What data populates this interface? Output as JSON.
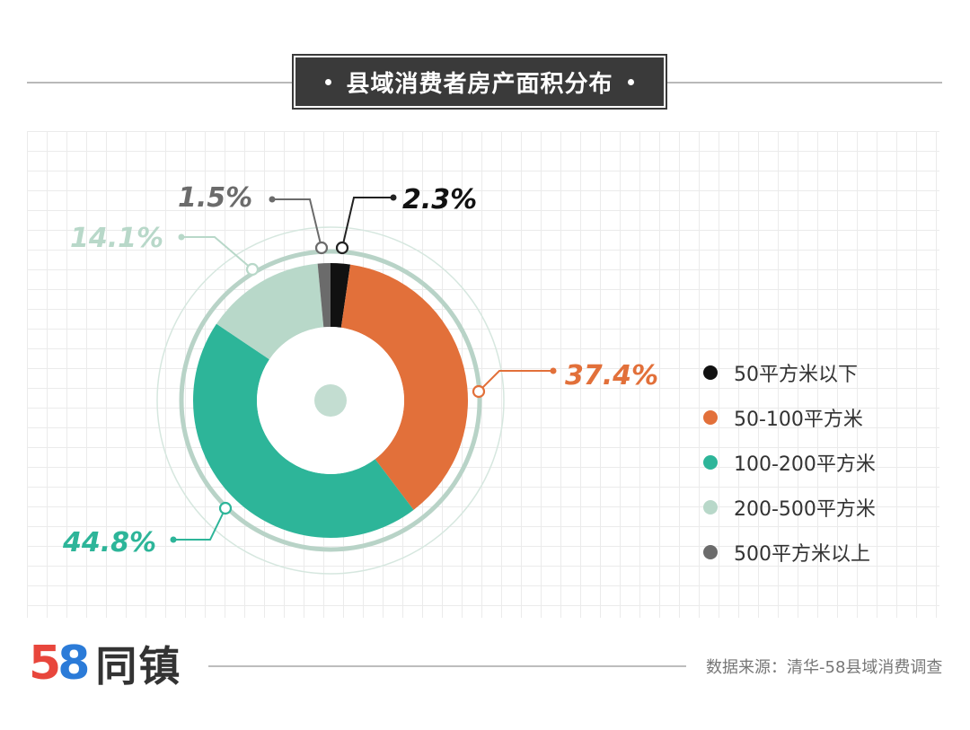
{
  "header": {
    "title": "县域消费者房产面积分布"
  },
  "chart_data": {
    "type": "pie",
    "variant": "donut",
    "title": "县域消费者房产面积分布",
    "categories": [
      "50平方米以下",
      "50-100平方米",
      "100-200平方米",
      "200-500平方米",
      "500平方米以上"
    ],
    "values": [
      2.3,
      37.4,
      44.8,
      14.1,
      1.5
    ],
    "labels": [
      "2.3%",
      "37.4%",
      "44.8%",
      "14.1%",
      "1.5%"
    ],
    "colors": [
      "#111111",
      "#e2703a",
      "#2db599",
      "#b8d8c9",
      "#6b6b6b"
    ],
    "legend_position": "right",
    "grid": true
  },
  "footer": {
    "logo_number": "58",
    "logo_number_colors": [
      "#e8463c",
      "#2b7bd8",
      "#f6b92b",
      "#45b649"
    ],
    "logo_text": "同镇",
    "source": "数据来源：清华-58县域消费调查"
  }
}
